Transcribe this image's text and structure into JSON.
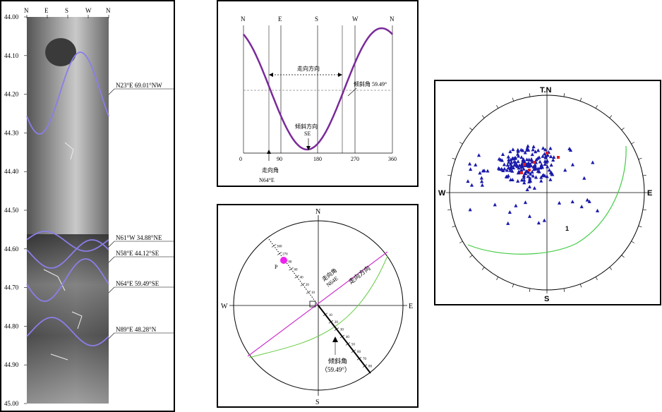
{
  "core_log": {
    "compass_ticks": [
      "N",
      "E",
      "S",
      "W",
      "N"
    ],
    "depth_labels": [
      "44.00",
      "44.10",
      "44.20",
      "44.30",
      "44.40",
      "44.50",
      "44.60",
      "44.70",
      "44.80",
      "44.90",
      "45.00"
    ],
    "fractures": [
      {
        "label": "N23°E  69.01°NW"
      },
      {
        "label": "N61°W  34.88°NE"
      },
      {
        "label": "N58°E  44.12°SE"
      },
      {
        "label": "N64°E  59.49°SE"
      },
      {
        "label": "N89°E  48.28°N"
      }
    ],
    "colors": {
      "trace": "#8a7ee8",
      "rock_dark": "#3a3a3a",
      "rock_light": "#b8b8b8"
    }
  },
  "sine_panel": {
    "top_labels": [
      "N",
      "E",
      "S",
      "W",
      "N"
    ],
    "x_ticks": [
      "0",
      "90",
      "180",
      "270",
      "360"
    ],
    "strike_direction_label": "走向方向",
    "dip_angle_label": "倾斜角 59.49°",
    "dip_direction_label": "倾斜方向",
    "dip_direction_value": "SE",
    "strike_angle_label": "走向角",
    "strike_angle_value": "N64°E",
    "colors": {
      "curve": "#7a2a9a"
    }
  },
  "stereo_panel": {
    "cardinals": {
      "n": "N",
      "s": "S",
      "e": "E",
      "w": "W"
    },
    "strike_direction_label": "走向方向",
    "strike_angle_label": "走向角",
    "strike_angle_value": "N64E",
    "pole_label": "P",
    "dip_angle_label": "倾斜角",
    "dip_angle_value": "（59.49°）",
    "scale_ticks_upper": [
      "360",
      "270",
      "80",
      "60",
      "40",
      "20",
      "10"
    ],
    "scale_ticks_lower": [
      "10",
      "20",
      "30",
      "40",
      "50",
      "60",
      "70",
      "80"
    ],
    "colors": {
      "plane": "#cc33cc",
      "greatcircle": "#66cc44",
      "pole": "#ee22ee"
    }
  },
  "pole_plot": {
    "cardinals": {
      "n": "T.N",
      "s": "S",
      "e": "E",
      "w": "W"
    },
    "greatcircle_label": "1",
    "colors": {
      "poles": "#1a1aaa",
      "highlight": "#dd2222",
      "greatcircle": "#44cc44"
    }
  }
}
